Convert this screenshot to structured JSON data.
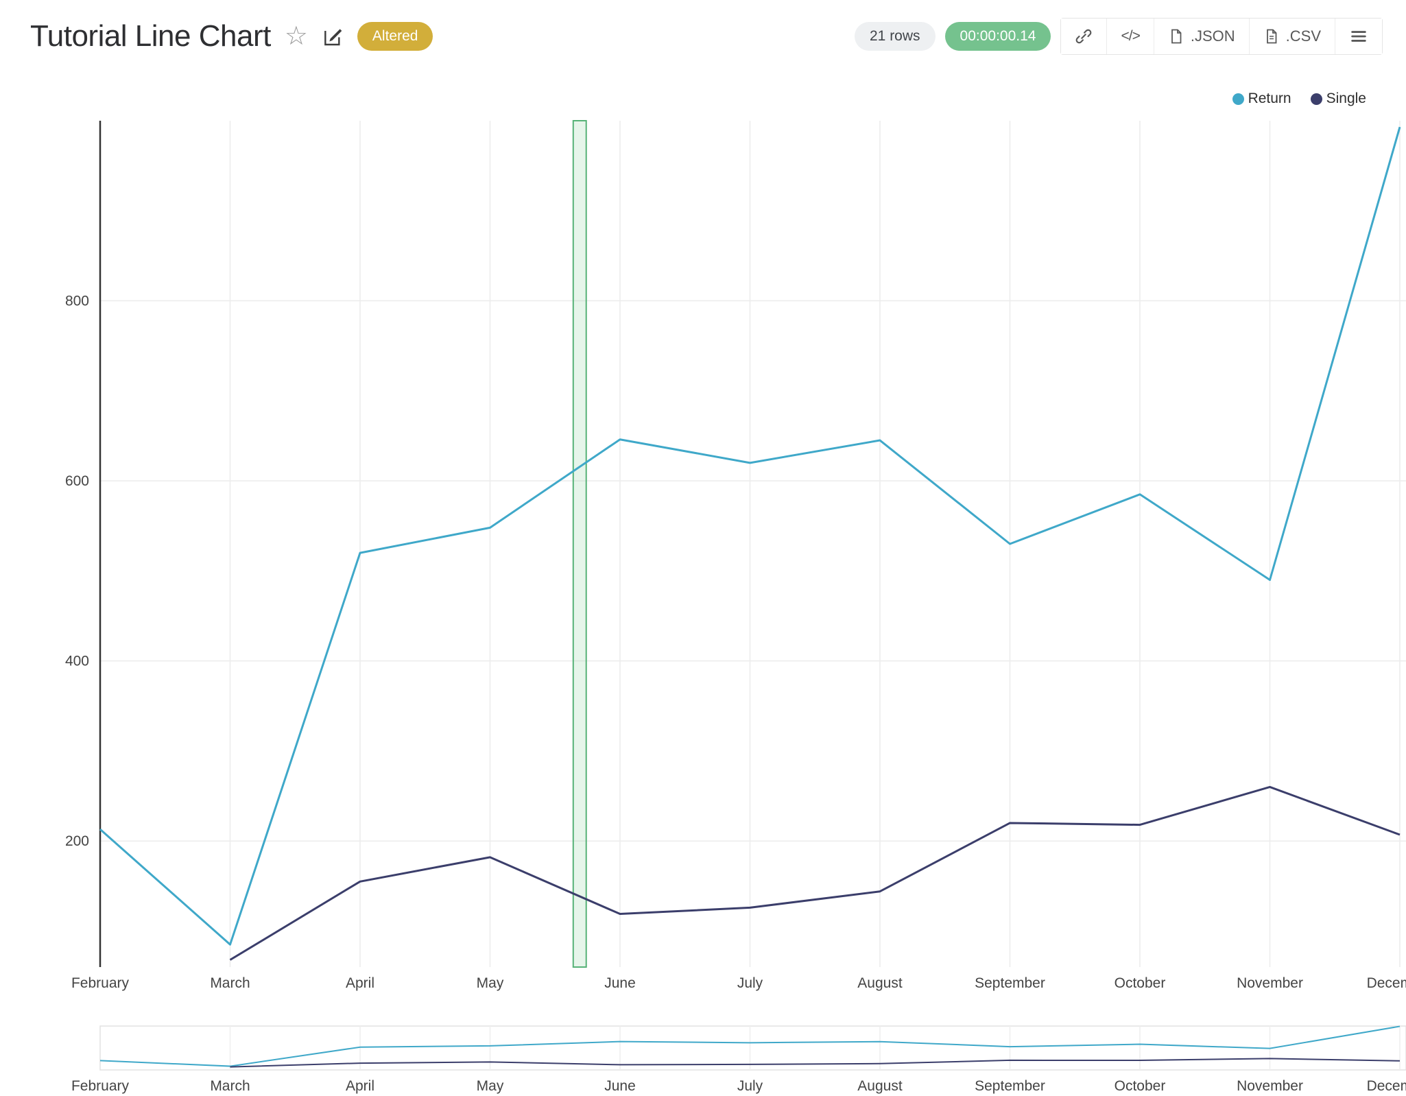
{
  "header": {
    "title": "Tutorial Line Chart",
    "altered_badge": "Altered",
    "rows_badge": "21 rows",
    "timer_badge": "00:00:00.14",
    "buttons": {
      "json_label": ".JSON",
      "csv_label": ".CSV"
    }
  },
  "colors": {
    "altered_badge_bg": "#d2ae3a",
    "timer_badge_bg": "#75c28e",
    "series_return": "#3fa8c9",
    "series_single": "#3b3e6b",
    "highlight_band_stroke": "#56b277"
  },
  "chart_data": {
    "type": "line",
    "x": [
      "February",
      "March",
      "April",
      "May",
      "June",
      "July",
      "August",
      "September",
      "October",
      "November",
      "December"
    ],
    "series": [
      {
        "name": "Return",
        "color": "#3fa8c9",
        "values": [
          213,
          85,
          520,
          548,
          646,
          620,
          645,
          530,
          585,
          490,
          993
        ]
      },
      {
        "name": "Single",
        "color": "#3b3e6b",
        "values": [
          null,
          68,
          155,
          182,
          119,
          126,
          144,
          220,
          218,
          260,
          207
        ]
      }
    ],
    "yticks": [
      200,
      400,
      600,
      800
    ],
    "ylim": [
      60,
      1000
    ],
    "grid": true,
    "legend_position": "top-right",
    "highlight_band": {
      "from_index": 3.64,
      "to_index": 3.74
    },
    "has_range_slider": true
  }
}
